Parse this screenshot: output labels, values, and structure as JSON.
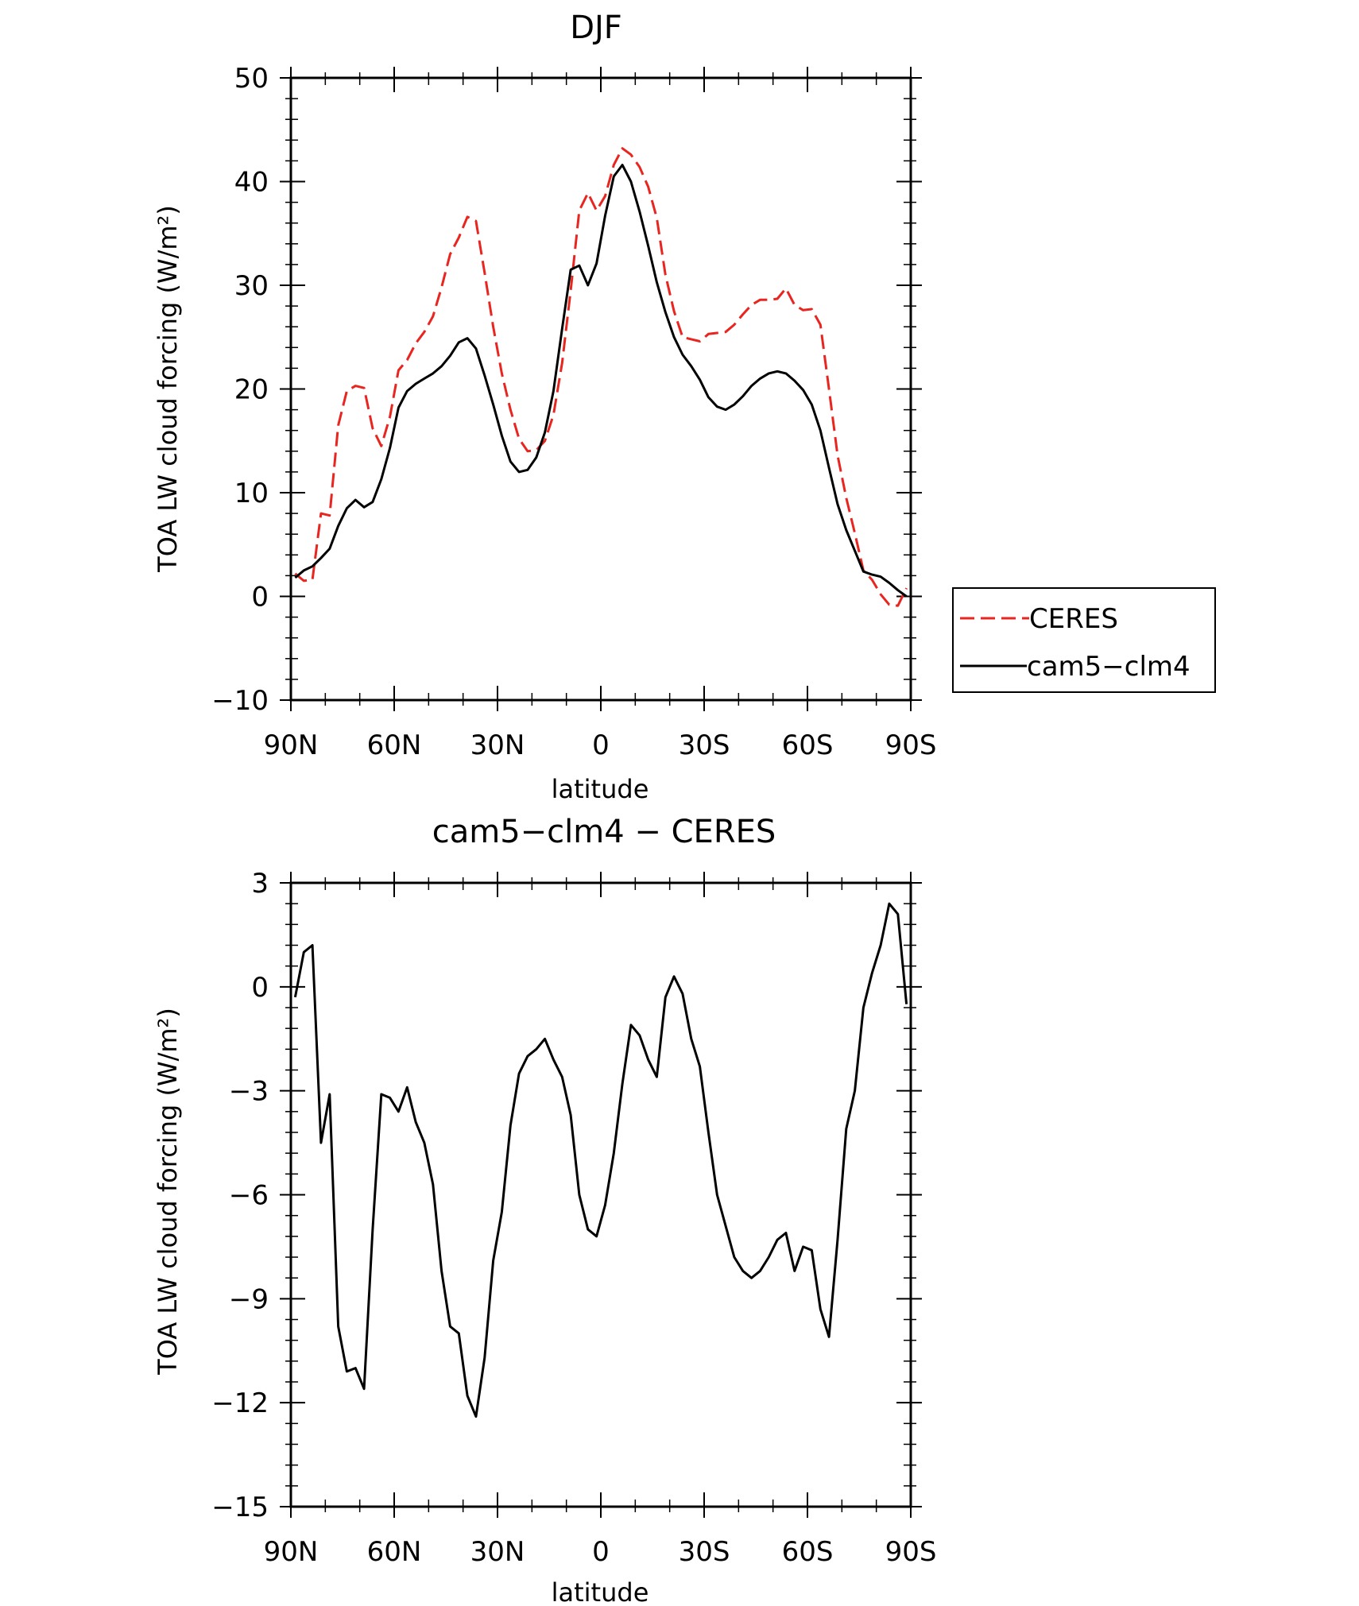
{
  "chart_data": [
    {
      "type": "line",
      "title": "DJF",
      "xlabel": "latitude",
      "ylabel": "TOA LW cloud forcing (W/m²)",
      "xlim": [
        90,
        -90
      ],
      "ylim": [
        -10,
        50
      ],
      "yticks": [
        -10,
        0,
        10,
        20,
        30,
        40,
        50
      ],
      "xticks": [
        90,
        60,
        30,
        0,
        -30,
        -60,
        -90
      ],
      "xtick_labels": [
        "90N",
        "60N",
        "30N",
        "0",
        "30S",
        "60S",
        "90S"
      ],
      "legend": "right",
      "series": [
        {
          "name": "CERES",
          "color": "#e8251f",
          "dash": true,
          "x": [
            88.75,
            86.25,
            83.75,
            81.25,
            78.75,
            76.25,
            73.75,
            71.25,
            68.75,
            66.25,
            63.75,
            61.25,
            58.75,
            56.25,
            53.75,
            51.25,
            48.75,
            46.25,
            43.75,
            41.25,
            38.75,
            36.25,
            33.75,
            31.25,
            28.75,
            26.25,
            23.75,
            21.25,
            18.75,
            16.25,
            13.75,
            11.25,
            8.75,
            6.25,
            3.75,
            1.25,
            -1.25,
            -3.75,
            -6.25,
            -8.75,
            -11.25,
            -13.75,
            -16.25,
            -18.75,
            -21.25,
            -23.75,
            -26.25,
            -28.75,
            -31.25,
            -33.75,
            -36.25,
            -38.75,
            -41.25,
            -43.75,
            -46.25,
            -48.75,
            -51.25,
            -53.75,
            -56.25,
            -58.75,
            -61.25,
            -63.75,
            -66.25,
            -68.75,
            -71.25,
            -73.75,
            -76.25,
            -78.75,
            -81.25,
            -83.75,
            -86.25,
            -88.75
          ],
          "y": [
            2.2,
            1.5,
            1.6,
            8.0,
            7.8,
            16.5,
            19.8,
            20.3,
            20.1,
            16.2,
            14.5,
            17.3,
            21.8,
            22.8,
            24.4,
            25.5,
            27.0,
            29.8,
            33.0,
            34.6,
            36.6,
            36.2,
            31.2,
            26.0,
            21.5,
            18.0,
            15.2,
            14.0,
            14.1,
            15.0,
            17.5,
            22.5,
            29.5,
            37.2,
            38.9,
            37.2,
            38.6,
            41.6,
            43.2,
            42.6,
            41.4,
            39.5,
            36.5,
            31.0,
            27.5,
            25.0,
            24.8,
            24.6,
            25.3,
            25.4,
            25.5,
            26.2,
            27.2,
            28.1,
            28.6,
            28.6,
            28.7,
            29.7,
            28.1,
            27.6,
            27.7,
            26.2,
            20.0,
            13.6,
            9.5,
            6.1,
            2.5,
            1.6,
            0.2,
            -0.8,
            -0.9,
            0.8
          ]
        },
        {
          "name": "cam5−clm4",
          "color": "#000000",
          "dash": false,
          "x": [
            88.75,
            86.25,
            83.75,
            81.25,
            78.75,
            76.25,
            73.75,
            71.25,
            68.75,
            66.25,
            63.75,
            61.25,
            58.75,
            56.25,
            53.75,
            51.25,
            48.75,
            46.25,
            43.75,
            41.25,
            38.75,
            36.25,
            33.75,
            31.25,
            28.75,
            26.25,
            23.75,
            21.25,
            18.75,
            16.25,
            13.75,
            11.25,
            8.75,
            6.25,
            3.75,
            1.25,
            -1.25,
            -3.75,
            -6.25,
            -8.75,
            -11.25,
            -13.75,
            -16.25,
            -18.75,
            -21.25,
            -23.75,
            -26.25,
            -28.75,
            -31.25,
            -33.75,
            -36.25,
            -38.75,
            -41.25,
            -43.75,
            -46.25,
            -48.75,
            -51.25,
            -53.75,
            -56.25,
            -58.75,
            -61.25,
            -63.75,
            -66.25,
            -68.75,
            -71.25,
            -73.75,
            -76.25,
            -78.75,
            -81.25,
            -83.75,
            -86.25,
            -88.75
          ],
          "y": [
            1.8,
            2.5,
            2.9,
            3.7,
            4.6,
            6.8,
            8.5,
            9.3,
            8.6,
            9.1,
            11.3,
            14.3,
            18.2,
            19.8,
            20.5,
            21.0,
            21.5,
            22.2,
            23.2,
            24.5,
            24.9,
            23.9,
            21.3,
            18.5,
            15.5,
            13.0,
            12.0,
            12.2,
            13.4,
            15.8,
            19.8,
            25.8,
            31.5,
            31.9,
            30.0,
            32.1,
            36.7,
            40.5,
            41.6,
            40.0,
            37.1,
            33.8,
            30.3,
            27.4,
            25.0,
            23.3,
            22.2,
            20.9,
            19.2,
            18.3,
            18.0,
            18.5,
            19.3,
            20.3,
            21.0,
            21.5,
            21.7,
            21.5,
            20.8,
            19.9,
            18.5,
            16.0,
            12.4,
            8.9,
            6.4,
            4.4,
            2.4,
            2.1,
            1.9,
            1.3,
            0.6,
            0.0
          ]
        }
      ]
    },
    {
      "type": "line",
      "title": "cam5−clm4 − CERES",
      "xlabel": "latitude",
      "ylabel": "TOA LW cloud forcing (W/m²)",
      "xlim": [
        90,
        -90
      ],
      "ylim": [
        -15,
        3
      ],
      "yticks": [
        -15,
        -12,
        -9,
        -6,
        -3,
        0,
        3
      ],
      "xticks": [
        90,
        60,
        30,
        0,
        -30,
        -60,
        -90
      ],
      "xtick_labels": [
        "90N",
        "60N",
        "30N",
        "0",
        "30S",
        "60S",
        "90S"
      ],
      "series": [
        {
          "color": "#000000",
          "dash": false,
          "x": [
            88.75,
            86.25,
            83.75,
            81.25,
            78.75,
            76.25,
            73.75,
            71.25,
            68.75,
            66.25,
            63.75,
            61.25,
            58.75,
            56.25,
            53.75,
            51.25,
            48.75,
            46.25,
            43.75,
            41.25,
            38.75,
            36.25,
            33.75,
            31.25,
            28.75,
            26.25,
            23.75,
            21.25,
            18.75,
            16.25,
            13.75,
            11.25,
            8.75,
            6.25,
            3.75,
            1.25,
            -1.25,
            -3.75,
            -6.25,
            -8.75,
            -11.25,
            -13.75,
            -16.25,
            -18.75,
            -21.25,
            -23.75,
            -26.25,
            -28.75,
            -31.25,
            -33.75,
            -36.25,
            -38.75,
            -41.25,
            -43.75,
            -46.25,
            -48.75,
            -51.25,
            -53.75,
            -56.25,
            -58.75,
            -61.25,
            -63.75,
            -66.25,
            -68.75,
            -71.25,
            -73.75,
            -76.25,
            -78.75,
            -81.25,
            -83.75,
            -86.25,
            -88.75
          ],
          "y": [
            -0.3,
            1.0,
            1.2,
            -4.5,
            -3.1,
            -9.8,
            -11.1,
            -11.0,
            -11.6,
            -7.0,
            -3.1,
            -3.2,
            -3.6,
            -2.9,
            -3.9,
            -4.5,
            -5.7,
            -8.2,
            -9.8,
            -10.0,
            -11.8,
            -12.4,
            -10.7,
            -7.9,
            -6.5,
            -4.0,
            -2.5,
            -2.0,
            -1.8,
            -1.5,
            -2.1,
            -2.6,
            -3.7,
            -6.0,
            -7.0,
            -7.2,
            -6.3,
            -4.8,
            -2.8,
            -1.1,
            -1.4,
            -2.1,
            -2.6,
            -0.3,
            0.3,
            -0.2,
            -1.5,
            -2.3,
            -4.2,
            -6.0,
            -6.9,
            -7.8,
            -8.2,
            -8.4,
            -8.2,
            -7.8,
            -7.3,
            -7.1,
            -8.2,
            -7.5,
            -7.6,
            -9.3,
            -10.1,
            -7.3,
            -4.1,
            -3.0,
            -0.6,
            0.4,
            1.2,
            2.4,
            2.1,
            -0.5
          ]
        }
      ]
    }
  ]
}
